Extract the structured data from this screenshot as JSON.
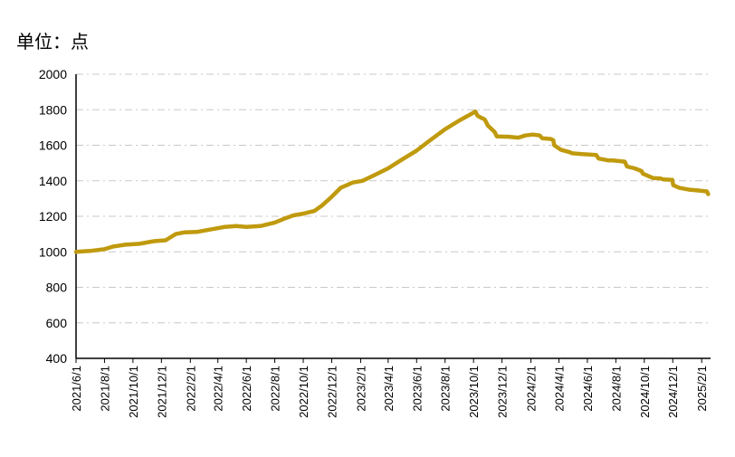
{
  "unit_label": "单位：点",
  "chart_data": {
    "type": "line",
    "title": "",
    "xlabel": "",
    "ylabel": "",
    "ylim": [
      400,
      2000
    ],
    "yticks": [
      400,
      600,
      800,
      1000,
      1200,
      1400,
      1600,
      1800,
      2000
    ],
    "xlim": [
      "2021-06-01",
      "2025-02-20"
    ],
    "xticks": [
      "2021/6/1",
      "2021/8/1",
      "2021/10/1",
      "2021/12/1",
      "2022/2/1",
      "2022/4/1",
      "2022/6/1",
      "2022/8/1",
      "2022/10/1",
      "2022/12/1",
      "2023/2/1",
      "2023/4/1",
      "2023/6/1",
      "2023/8/1",
      "2023/10/1",
      "2023/12/1",
      "2024/2/1",
      "2024/4/1",
      "2024/6/1",
      "2024/8/1",
      "2024/10/1",
      "2024/12/1",
      "2025/2/1"
    ],
    "grid": true,
    "legend": "none",
    "color": "#C09A0E",
    "series": [
      {
        "x": [
          "2021-06-01",
          "2021-07-01",
          "2021-08-01",
          "2021-08-20",
          "2021-09-15",
          "2021-10-15",
          "2021-11-15",
          "2021-12-10",
          "2022-01-01",
          "2022-01-20",
          "2022-02-15",
          "2022-03-15",
          "2022-04-15",
          "2022-05-10",
          "2022-06-01",
          "2022-07-01",
          "2022-08-01",
          "2022-08-20",
          "2022-09-10",
          "2022-10-01",
          "2022-10-25",
          "2022-11-10",
          "2022-12-01",
          "2022-12-20",
          "2023-01-15",
          "2023-02-05",
          "2023-03-01",
          "2023-04-01",
          "2023-05-01",
          "2023-06-01",
          "2023-07-01",
          "2023-08-01",
          "2023-09-01",
          "2023-09-25",
          "2023-10-05",
          "2023-10-09",
          "2023-10-12",
          "2023-10-25",
          "2023-11-01",
          "2023-11-15",
          "2023-11-20",
          "2023-12-15",
          "2024-01-05",
          "2024-01-20",
          "2024-02-05",
          "2024-02-20",
          "2024-02-25",
          "2024-03-15",
          "2024-03-20",
          "2024-03-22",
          "2024-04-05",
          "2024-04-25",
          "2024-04-28",
          "2024-05-20",
          "2024-06-20",
          "2024-06-25",
          "2024-07-15",
          "2024-07-25",
          "2024-08-20",
          "2024-08-25",
          "2024-09-10",
          "2024-09-25",
          "2024-09-28",
          "2024-10-20",
          "2024-11-05",
          "2024-11-10",
          "2024-11-30",
          "2024-12-02",
          "2024-12-15",
          "2025-01-05",
          "2025-01-25",
          "2025-02-12",
          "2025-02-15"
        ],
        "values": [
          1000,
          1005,
          1015,
          1030,
          1040,
          1045,
          1060,
          1065,
          1100,
          1110,
          1112,
          1125,
          1140,
          1145,
          1140,
          1145,
          1165,
          1185,
          1205,
          1215,
          1230,
          1260,
          1310,
          1360,
          1390,
          1400,
          1430,
          1470,
          1520,
          1570,
          1630,
          1690,
          1740,
          1775,
          1790,
          1768,
          1762,
          1745,
          1710,
          1675,
          1650,
          1648,
          1643,
          1655,
          1660,
          1655,
          1640,
          1635,
          1628,
          1600,
          1575,
          1560,
          1555,
          1550,
          1545,
          1525,
          1515,
          1515,
          1508,
          1480,
          1470,
          1455,
          1440,
          1415,
          1413,
          1408,
          1405,
          1375,
          1360,
          1350,
          1345,
          1340,
          1325
        ]
      }
    ]
  }
}
